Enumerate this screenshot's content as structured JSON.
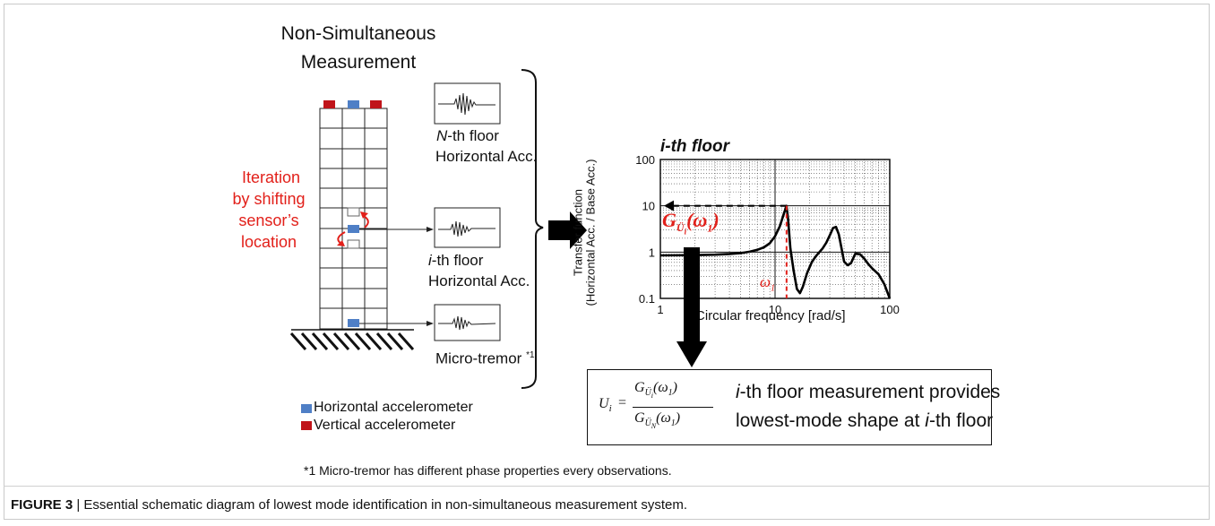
{
  "figure_title": {
    "line1": "Non-Simultaneous",
    "line2": "Measurement"
  },
  "iteration_label": {
    "line1": "Iteration",
    "line2": "by shifting",
    "line3": "sensor’s",
    "line4": "location"
  },
  "signals": {
    "nth_floor": {
      "prefix": "N",
      "rest": "-th floor",
      "line2": "Horizontal Acc."
    },
    "ith_floor": {
      "prefix": "i",
      "rest": "-th floor",
      "line2": "Horizontal Acc."
    },
    "micro_tremor": {
      "label": "Micro-tremor",
      "note": "*1"
    }
  },
  "legend": {
    "horizontal": {
      "label": "Horizontal accelerometer",
      "color": "#4f7fc6"
    },
    "vertical": {
      "label": "Vertical accelerometer",
      "color": "#c0141a"
    }
  },
  "chart": {
    "title": "i-th floor",
    "y_label_line1": "Transfer function",
    "y_label_line2": "(Horizontal Acc. / Base Acc.)",
    "x_label": "Circular frequency [rad/s]",
    "x_ticks": [
      "1",
      "10",
      "100"
    ],
    "y_ticks": [
      "100",
      "10",
      "1",
      "0.1"
    ],
    "g_label_main": "G",
    "g_label_sub": "Ü",
    "g_label_sub_index": "i",
    "g_label_arg": "(ω",
    "g_label_arg_sub": "1",
    "g_label_close": ")",
    "omega_label": "ω",
    "omega_sub": "1"
  },
  "chart_data": {
    "type": "line",
    "title": "i-th floor",
    "xlabel": "Circular frequency [rad/s]",
    "ylabel": "Transfer function (Horizontal Acc. / Base Acc.)",
    "x_scale": "log",
    "y_scale": "log",
    "xlim": [
      1,
      100
    ],
    "ylim": [
      0.1,
      100
    ],
    "grid": true,
    "series": [
      {
        "x": [
          1,
          2,
          3,
          4,
          5,
          6,
          7,
          8,
          9,
          10,
          11,
          12,
          12.6,
          13,
          13.6,
          14.5,
          15.5,
          16.5,
          17.5,
          19,
          21,
          23,
          26,
          28,
          30,
          32,
          34,
          36,
          38,
          40,
          43,
          46,
          50,
          55,
          60,
          65,
          70,
          80,
          90,
          100
        ],
        "y": [
          0.85,
          0.86,
          0.88,
          0.91,
          0.95,
          1.02,
          1.12,
          1.27,
          1.55,
          2.2,
          3.6,
          7,
          10,
          5,
          1.2,
          0.4,
          0.16,
          0.13,
          0.18,
          0.35,
          0.62,
          0.85,
          1.2,
          1.6,
          2.3,
          3.3,
          3.5,
          2.4,
          1.2,
          0.62,
          0.52,
          0.58,
          0.92,
          0.9,
          0.72,
          0.55,
          0.45,
          0.33,
          0.2,
          0.1
        ]
      }
    ],
    "annotations": [
      "G_Üi(ω1)",
      "ω1"
    ]
  },
  "equation": {
    "lhs": "U",
    "lhs_sub": "i",
    "eq": "=",
    "num": "G",
    "num_sub": "Ü",
    "num_sub_i": "i",
    "arg": "(ω",
    "arg_sub": "1",
    "arg_close": ")",
    "den": "G",
    "den_sub": "Ü",
    "den_sub_n": "N"
  },
  "result": {
    "line1_prefix": "i",
    "line1_rest": "-th floor measurement provides",
    "line2_pre": "lowest-mode shape at ",
    "line2_italic": "i",
    "line2_post": "-th floor"
  },
  "footnote": "*1  Micro-tremor has different phase properties every observations.",
  "caption": {
    "label": "FIGURE 3",
    "sep": " | ",
    "text": "Essential schematic diagram of lowest mode identification in non-simultaneous measurement system."
  }
}
